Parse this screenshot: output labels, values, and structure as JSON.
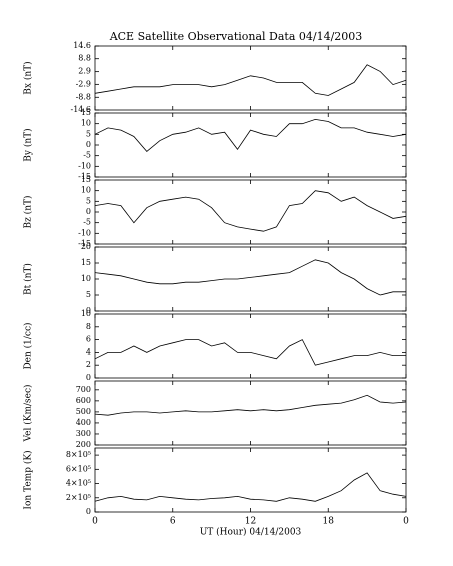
{
  "chart_data": [
    {
      "type": "line",
      "title": "ACE Satellite Observational Data   04/14/2003",
      "ylabel": "Bx (nT)",
      "x": [
        0,
        1,
        2,
        3,
        4,
        5,
        6,
        7,
        8,
        9,
        10,
        11,
        12,
        13,
        14,
        15,
        16,
        17,
        18,
        19,
        20,
        21,
        22,
        23,
        24
      ],
      "values": [
        -7,
        -6,
        -5,
        -4,
        -4,
        -4,
        -3,
        -3,
        -3,
        -4,
        -3,
        -1,
        1,
        0,
        -2,
        -2,
        -2,
        -7,
        -8,
        -5,
        -2,
        6,
        3,
        -3,
        -1
      ],
      "color": "#000000",
      "xlim": [
        0,
        24
      ],
      "ylim": [
        -14.6,
        14.6
      ],
      "yticks": [
        -14.6,
        -8.8,
        -2.9,
        2.9,
        8.8,
        14.6
      ]
    },
    {
      "type": "line",
      "ylabel": "By (nT)",
      "x": [
        0,
        1,
        2,
        3,
        4,
        5,
        6,
        7,
        8,
        9,
        10,
        11,
        12,
        13,
        14,
        15,
        16,
        17,
        18,
        19,
        20,
        21,
        22,
        23,
        24
      ],
      "values": [
        5,
        8,
        7,
        4,
        -3,
        2,
        5,
        6,
        8,
        5,
        6,
        -2,
        7,
        5,
        4,
        10,
        10,
        12,
        11,
        8,
        8,
        6,
        5,
        4,
        5
      ],
      "color": "#000000",
      "xlim": [
        0,
        24
      ],
      "ylim": [
        -15,
        15
      ],
      "yticks": [
        -15,
        -10,
        -5,
        0,
        5,
        10,
        15
      ]
    },
    {
      "type": "line",
      "ylabel": "Bz (nT)",
      "x": [
        0,
        1,
        2,
        3,
        4,
        5,
        6,
        7,
        8,
        9,
        10,
        11,
        12,
        13,
        14,
        15,
        16,
        17,
        18,
        19,
        20,
        21,
        22,
        23,
        24
      ],
      "values": [
        3,
        4,
        3,
        -5,
        2,
        5,
        6,
        7,
        6,
        2,
        -5,
        -7,
        -8,
        -9,
        -7,
        3,
        4,
        10,
        9,
        5,
        7,
        3,
        0,
        -3,
        -2
      ],
      "color": "#000000",
      "xlim": [
        0,
        24
      ],
      "ylim": [
        -15,
        15
      ],
      "yticks": [
        -15,
        -10,
        -5,
        0,
        5,
        10,
        15
      ]
    },
    {
      "type": "line",
      "ylabel": "Bt (nT)",
      "x": [
        0,
        1,
        2,
        3,
        4,
        5,
        6,
        7,
        8,
        9,
        10,
        11,
        12,
        13,
        14,
        15,
        16,
        17,
        18,
        19,
        20,
        21,
        22,
        23,
        24
      ],
      "values": [
        12,
        11.5,
        11,
        10,
        9,
        8.5,
        8.5,
        9,
        9,
        9.5,
        10,
        10,
        10.5,
        11,
        11.5,
        12,
        14,
        16,
        15,
        12,
        10,
        7,
        5,
        6,
        6
      ],
      "color": "#000000",
      "xlim": [
        0,
        24
      ],
      "ylim": [
        0,
        20
      ],
      "yticks": [
        0,
        5,
        10,
        15,
        20
      ]
    },
    {
      "type": "line",
      "ylabel": "Den (1/cc)",
      "x": [
        0,
        1,
        2,
        3,
        4,
        5,
        6,
        7,
        8,
        9,
        10,
        11,
        12,
        13,
        14,
        15,
        16,
        17,
        18,
        19,
        20,
        21,
        22,
        23,
        24
      ],
      "values": [
        3,
        4,
        4,
        5,
        4,
        5,
        5.5,
        6,
        6,
        5,
        5.5,
        4,
        4,
        3.5,
        3,
        5,
        6,
        2,
        2.5,
        3,
        3.5,
        3.5,
        4,
        3.5,
        3.5
      ],
      "color": "#000000",
      "xlim": [
        0,
        24
      ],
      "ylim": [
        0,
        10
      ],
      "yticks": [
        0,
        2,
        4,
        6,
        8,
        10
      ]
    },
    {
      "type": "line",
      "ylabel": "Vel (Km/sec)",
      "x": [
        0,
        1,
        2,
        3,
        4,
        5,
        6,
        7,
        8,
        9,
        10,
        11,
        12,
        13,
        14,
        15,
        16,
        17,
        18,
        19,
        20,
        21,
        22,
        23,
        24
      ],
      "values": [
        480,
        470,
        490,
        500,
        500,
        490,
        500,
        510,
        500,
        500,
        510,
        520,
        510,
        520,
        510,
        520,
        540,
        560,
        570,
        580,
        610,
        650,
        590,
        580,
        590
      ],
      "color": "#000000",
      "xlim": [
        0,
        24
      ],
      "ylim": [
        200,
        780
      ],
      "yticks": [
        200,
        300,
        400,
        500,
        600,
        700
      ]
    },
    {
      "type": "line",
      "ylabel": "Ion Temp (K)",
      "xlabel": "UT (Hour)  04/14/2003",
      "x": [
        0,
        1,
        2,
        3,
        4,
        5,
        6,
        7,
        8,
        9,
        10,
        11,
        12,
        13,
        14,
        15,
        16,
        17,
        18,
        19,
        20,
        21,
        22,
        23,
        24
      ],
      "values": [
        150000,
        200000,
        220000,
        180000,
        170000,
        220000,
        200000,
        180000,
        170000,
        190000,
        200000,
        220000,
        180000,
        170000,
        150000,
        200000,
        180000,
        150000,
        220000,
        300000,
        450000,
        550000,
        300000,
        250000,
        220000
      ],
      "color": "#000000",
      "xlim": [
        0,
        24
      ],
      "ylim": [
        0,
        900000
      ],
      "yticks": [
        0,
        {
          "value": 200000,
          "label": "2×10⁵"
        },
        {
          "value": 400000,
          "label": "4×10⁵"
        },
        {
          "value": 600000,
          "label": "6×10⁵"
        },
        {
          "value": 800000,
          "label": "8×10⁵"
        }
      ],
      "xticks": [
        0,
        6,
        12,
        18,
        {
          "value": 24,
          "label": "0"
        }
      ]
    }
  ]
}
